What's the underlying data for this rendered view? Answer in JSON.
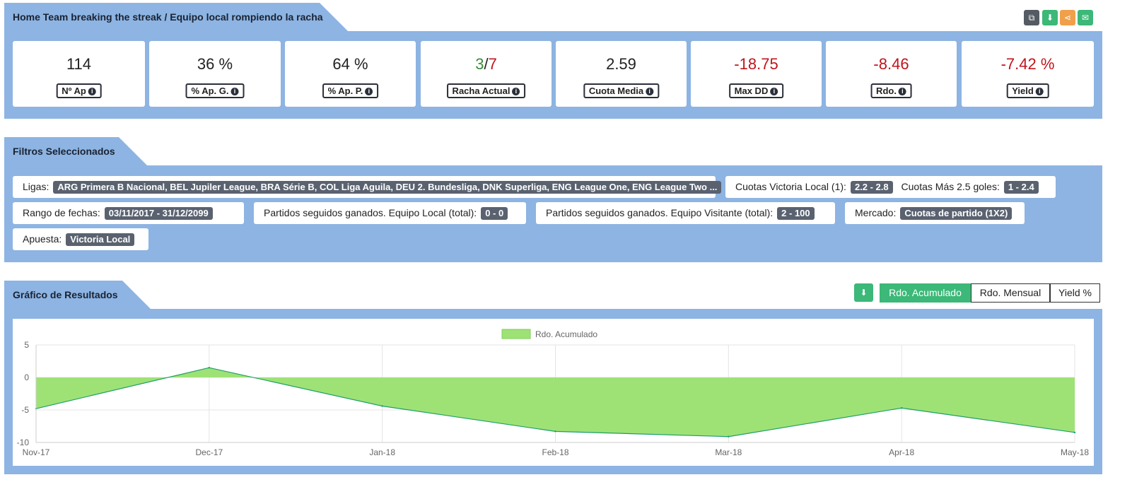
{
  "header": {
    "title": "Home Team breaking the streak / Equipo local rompiendo la racha",
    "actions": [
      {
        "name": "copy",
        "icon": "copy-icon",
        "glyph": "⧉",
        "color": "#555b62"
      },
      {
        "name": "download",
        "icon": "download-icon",
        "glyph": "⬇",
        "color": "#3cb878"
      },
      {
        "name": "share",
        "icon": "share-icon",
        "glyph": "⋖",
        "color": "#f0a04b"
      },
      {
        "name": "email",
        "icon": "envelope-icon",
        "glyph": "✉",
        "color": "#3cb878"
      }
    ]
  },
  "stats": [
    {
      "value": "114",
      "label": "Nº Ap"
    },
    {
      "value": "36 %",
      "label": "% Ap. G."
    },
    {
      "value": "64 %",
      "label": "% Ap. P."
    },
    {
      "value_win": "3",
      "value_sep": "/",
      "value_total": "7",
      "label": "Racha Actual"
    },
    {
      "value": "2.59",
      "label": "Cuota Media"
    },
    {
      "value": "-18.75",
      "label": "Max DD"
    },
    {
      "value": "-8.46",
      "label": "Rdo."
    },
    {
      "value": "-7.42 %",
      "label": "Yield"
    }
  ],
  "colors": {
    "panel": "#8db4e2",
    "positive": "#3a8a3a",
    "negative": "#c0141c",
    "accent": "#3cb878",
    "area": "#9ee276"
  },
  "filters": {
    "title": "Filtros Seleccionados",
    "ligas_label": "Ligas:",
    "ligas_value": "ARG Primera B Nacional, BEL Jupiler League, BRA Série B, COL Liga Aguila, DEU 2. Bundesliga, DNK Superliga, ENG League One, ENG League Two ...",
    "cuotas_local_label": "Cuotas Victoria Local (1):",
    "cuotas_local_value": "2.2 - 2.8",
    "cuotas_goles_label": "Cuotas Más 2.5 goles:",
    "cuotas_goles_value": "1 - 2.4",
    "rango_label": "Rango de fechas:",
    "rango_value": "03/11/2017 - 31/12/2099",
    "local_label": "Partidos seguidos ganados. Equipo Local (total):",
    "local_value": "0 - 0",
    "visitante_label": "Partidos seguidos ganados. Equipo Visitante (total):",
    "visitante_value": "2 - 100",
    "mercado_label": "Mercado:",
    "mercado_value": "Cuotas de partido (1X2)",
    "apuesta_label": "Apuesta:",
    "apuesta_value": "Victoria Local"
  },
  "chart_section": {
    "title": "Gráfico de Resultados",
    "download_icon": "download-icon",
    "toggles": [
      "Rdo. Acumulado",
      "Rdo. Mensual",
      "Yield %"
    ],
    "active_toggle": "Rdo. Acumulado"
  },
  "chart_data": {
    "type": "area",
    "x": [
      "Nov-17",
      "Dec-17",
      "Jan-18",
      "Feb-18",
      "Mar-18",
      "Apr-18",
      "May-18"
    ],
    "series": [
      {
        "name": "Rdo. Acumulado",
        "values": [
          -4.8,
          1.5,
          -4.4,
          -8.3,
          -9.1,
          -4.7,
          -8.46
        ]
      }
    ],
    "ylim": [
      -10,
      5
    ],
    "yticks": [
      5,
      0,
      -5,
      -10
    ],
    "grid": true,
    "legend": "top-center"
  }
}
